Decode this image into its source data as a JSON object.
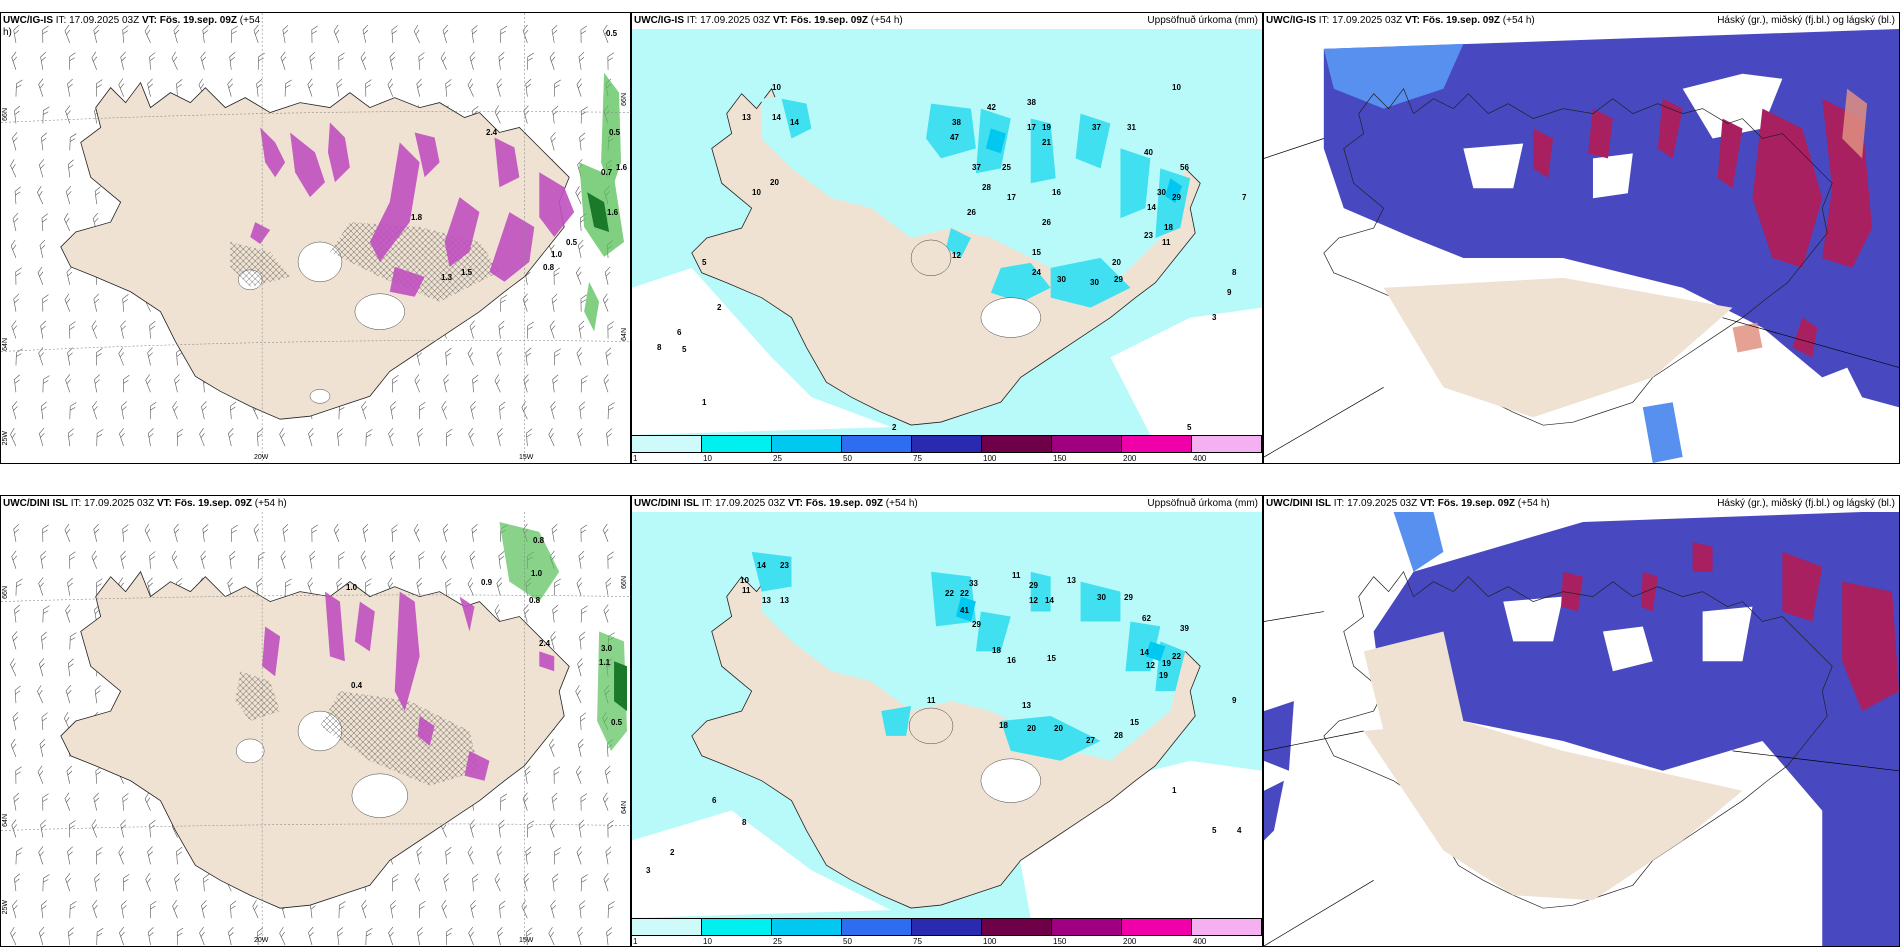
{
  "panels": [
    {
      "model": "UWC/IG-IS",
      "header_rest": " IT: 17.09.2025 03Z ",
      "vt_label": "VT: Fös. 19.sep. 09Z",
      "lead": " (+54",
      "lead_wrap": "h)",
      "title_right": "",
      "lon_labels": [
        "20W",
        "15W"
      ],
      "lat_labels": [
        "66N",
        "64N",
        "25W"
      ],
      "right_lat_labels": [
        "66N",
        "64N"
      ],
      "values": [
        "0.5",
        "0.5",
        "1.6",
        "0.7",
        "1.6",
        "0.5",
        "0.8",
        "1.0",
        "2.4",
        "1.8",
        "1.5",
        "1.3"
      ]
    },
    {
      "model": "UWC/IG-IS",
      "header_rest": " IT: 17.09.2025 03Z ",
      "vt_label": "VT: Fös. 19.sep. 09Z",
      "lead": " (+54 h)",
      "title_right": "Uppsöfnuð úrkoma (mm)",
      "values": [
        "10",
        "13",
        "14",
        "14",
        "20",
        "10",
        "38",
        "47",
        "42",
        "38",
        "17",
        "19",
        "21",
        "37",
        "31",
        "40",
        "56",
        "29",
        "37",
        "25",
        "28",
        "17",
        "26",
        "16",
        "14",
        "30",
        "15",
        "26",
        "23",
        "18",
        "11",
        "24",
        "30",
        "30",
        "29",
        "20",
        "12",
        "5",
        "2",
        "8",
        "6",
        "5",
        "1",
        "2",
        "3",
        "5",
        "10",
        "8",
        "7",
        "9"
      ]
    },
    {
      "model": "UWC/IG-IS",
      "header_rest": " IT: 17.09.2025 03Z ",
      "vt_label": "VT: Fös. 19.sep. 09Z",
      "lead": " (+54 h)",
      "title_right": "Háský (gr.), miðský (fj.bl.) og lágský (bl.)"
    },
    {
      "model": "UWC/DINI ISL",
      "header_rest": " IT: 17.09.2025 03Z ",
      "vt_label": "VT: Fös. 19.sep. 09Z",
      "lead": " (+54 h)",
      "title_right": "",
      "lon_labels": [
        "20W",
        "15W"
      ],
      "lat_labels": [
        "66N",
        "64N",
        "25W"
      ],
      "right_lat_labels": [
        "66N",
        "64N"
      ],
      "values": [
        "0.8",
        "1.0",
        "0.8",
        "2.4",
        "3.0",
        "1.1",
        "0.5",
        "1.0",
        "0.9",
        "0.4"
      ]
    },
    {
      "model": "UWC/DINI ISL",
      "header_rest": " IT: 17.09.2025 03Z ",
      "vt_label": "VT: Fös. 19.sep. 09Z",
      "lead": " (+54 h)",
      "title_right": "Uppsöfnuð úrkoma (mm)",
      "values": [
        "14",
        "23",
        "11",
        "13",
        "13",
        "10",
        "33",
        "22",
        "22",
        "41",
        "29",
        "11",
        "29",
        "12",
        "14",
        "13",
        "30",
        "29",
        "62",
        "39",
        "22",
        "19",
        "18",
        "16",
        "15",
        "14",
        "12",
        "19",
        "13",
        "20",
        "20",
        "27",
        "28",
        "15",
        "11",
        "18",
        "6",
        "2",
        "8",
        "3",
        "5",
        "4",
        "1",
        "9"
      ]
    },
    {
      "model": "UWC/DINI ISL",
      "header_rest": " IT: 17.09.2025 03Z ",
      "vt_label": "VT: Fös. 19.sep. 09Z",
      "lead": " (+54 h)",
      "title_right": "Háský (gr.), miðský (fj.bl.) og lágský (bl.)"
    }
  ],
  "colorbar": {
    "ticks": [
      "1",
      "10",
      "25",
      "50",
      "75",
      "100",
      "150",
      "200",
      "400"
    ],
    "colors": [
      "#cffafa",
      "#00f0f0",
      "#00c8f0",
      "#2e6cf0",
      "#2a2ab0",
      "#6e0048",
      "#a00080",
      "#f000a8",
      "#f4b0f0"
    ]
  },
  "colors": {
    "land": "#efe2d2",
    "precip_sea": "#b8fafa",
    "precip_mid": "#40e0f0",
    "snow_pink": "#c040c0",
    "green": "#58c058",
    "high_cloud": "#a82060",
    "mid_cloud": "#4848c0",
    "low_cloud": "#5890f0"
  }
}
